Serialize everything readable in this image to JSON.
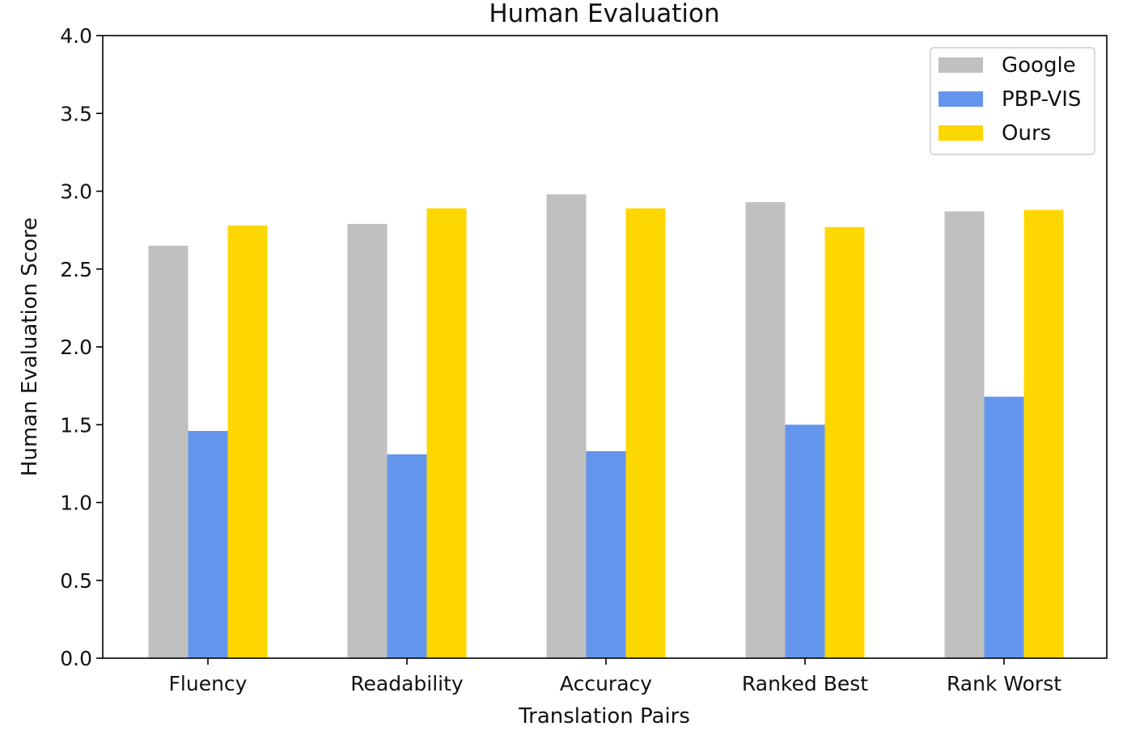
{
  "chart_data": {
    "type": "bar",
    "title": "Human Evaluation",
    "xlabel": "Translation Pairs",
    "ylabel": "Human Evaluation Score",
    "categories": [
      "Fluency",
      "Readability",
      "Accuracy",
      "Ranked Best",
      "Rank Worst"
    ],
    "series": [
      {
        "name": "Google",
        "color": "#c0c0c0",
        "values": [
          2.65,
          2.79,
          2.98,
          2.93,
          2.87
        ]
      },
      {
        "name": "PBP-VIS",
        "color": "#6495ed",
        "values": [
          1.46,
          1.31,
          1.33,
          1.5,
          1.68
        ]
      },
      {
        "name": "Ours",
        "color": "#ffd700",
        "values": [
          2.78,
          2.89,
          2.89,
          2.77,
          2.88
        ]
      }
    ],
    "ylim": [
      0,
      4
    ],
    "yticks": [
      "0.0",
      "0.5",
      "1.0",
      "1.5",
      "2.0",
      "2.5",
      "3.0",
      "3.5",
      "4.0"
    ],
    "grid": false,
    "legend_position": "top-right"
  }
}
